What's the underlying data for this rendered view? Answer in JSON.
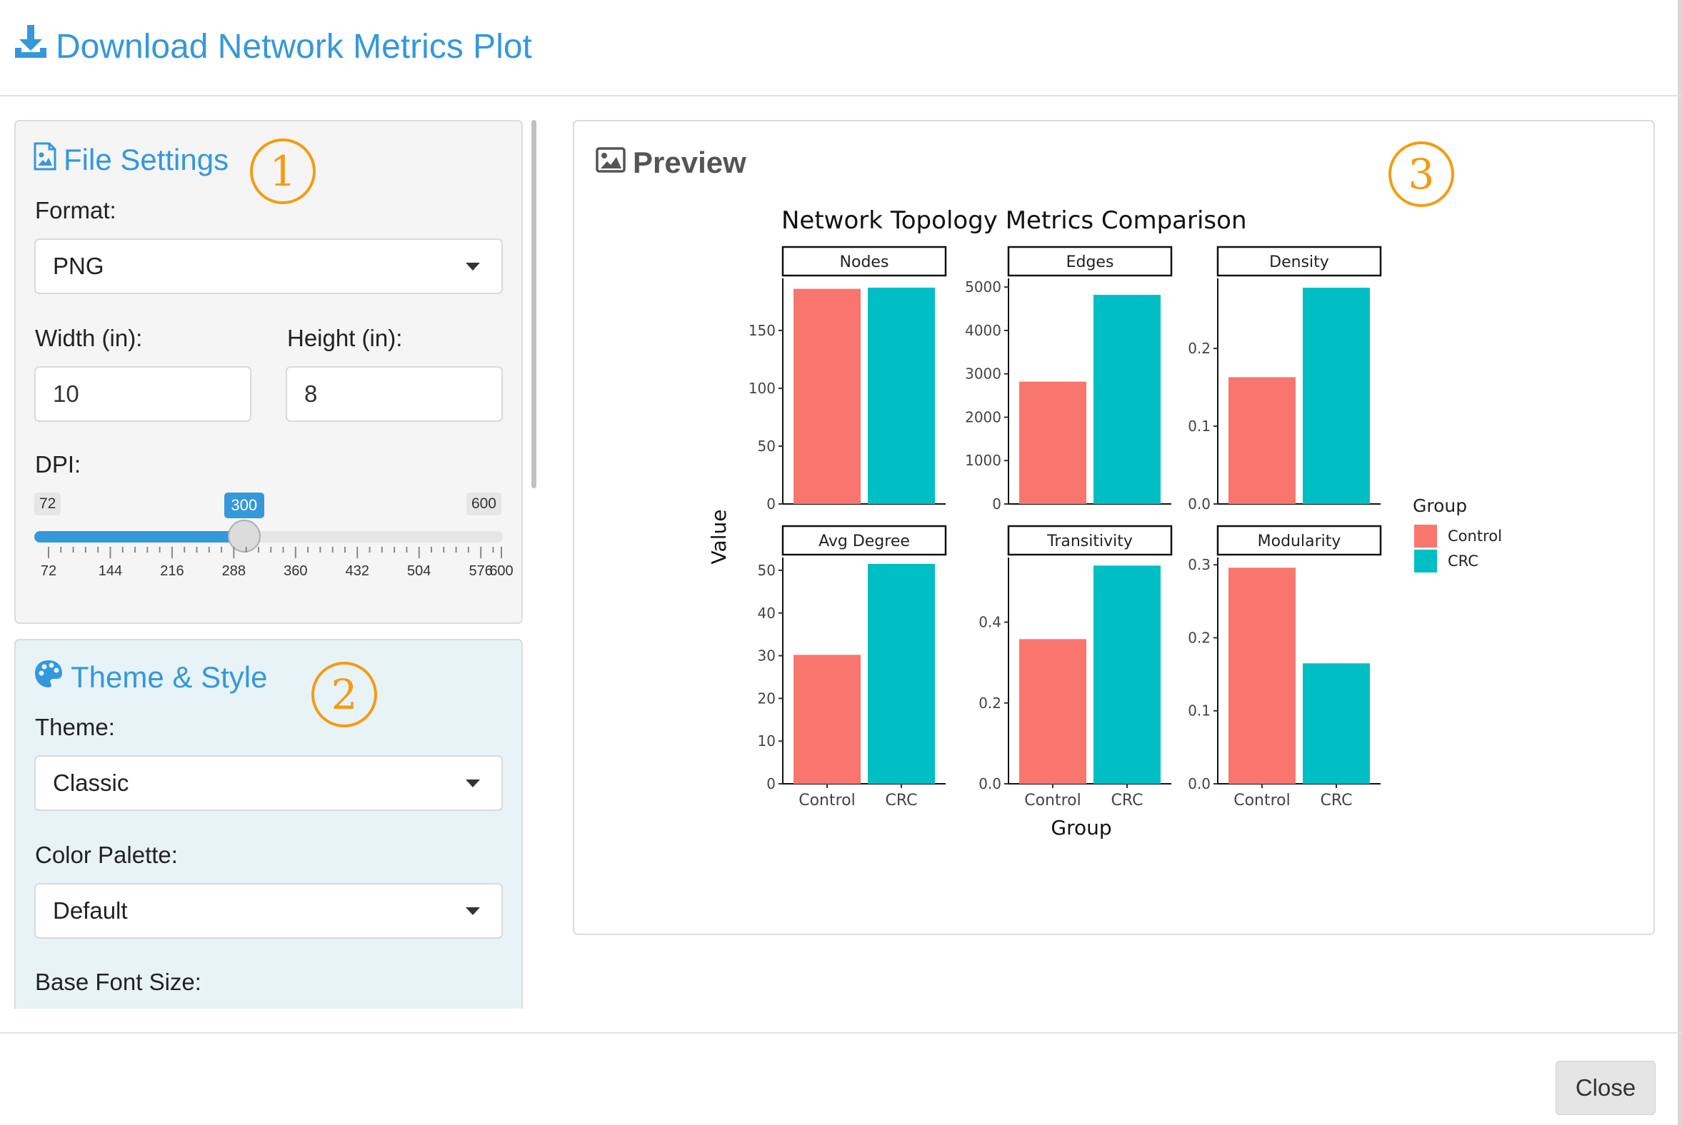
{
  "modal": {
    "title": "Download Network Metrics Plot",
    "close_label": "Close"
  },
  "file_settings": {
    "title": "File Settings",
    "badge": "1",
    "format_label": "Format:",
    "format_value": "PNG",
    "width_label": "Width (in):",
    "width_value": "10",
    "height_label": "Height (in):",
    "height_value": "8",
    "dpi_label": "DPI:",
    "dpi": {
      "min": 72,
      "max": 600,
      "value": 300,
      "min_label": "72",
      "max_label": "600",
      "value_label": "300",
      "grid_labels": [
        "72",
        "144",
        "216",
        "288",
        "360",
        "432",
        "504",
        "576",
        "600"
      ]
    }
  },
  "theme_style": {
    "title": "Theme & Style",
    "badge": "2",
    "theme_label": "Theme:",
    "theme_value": "Classic",
    "palette_label": "Color Palette:",
    "palette_value": "Default",
    "font_size_label": "Base Font Size:"
  },
  "preview": {
    "title": "Preview",
    "badge": "3"
  },
  "icons": {
    "header": "download-icon",
    "file_settings": "file-image-icon",
    "theme_style": "palette-icon",
    "preview": "image-icon"
  },
  "colors": {
    "accent": "#3498db",
    "badge": "#f39c12",
    "control": "#F8766D",
    "crc": "#00BFC4"
  },
  "chart_data": {
    "type": "bar",
    "title": "Network Topology Metrics Comparison",
    "xlabel": "Group",
    "ylabel": "Value",
    "categories": [
      "Control",
      "CRC"
    ],
    "legend": {
      "title": "Group",
      "entries": [
        "Control",
        "CRC"
      ],
      "placement": "right"
    },
    "facets": [
      {
        "name": "Nodes",
        "values": [
          186,
          187
        ],
        "ylim": [
          0,
          195
        ],
        "yticks": [
          0,
          50,
          100,
          150
        ]
      },
      {
        "name": "Edges",
        "values": [
          2820,
          4820
        ],
        "ylim": [
          0,
          5200
        ],
        "yticks": [
          0,
          1000,
          2000,
          3000,
          4000,
          5000
        ]
      },
      {
        "name": "Density",
        "values": [
          0.163,
          0.278
        ],
        "ylim": [
          0,
          0.29
        ],
        "yticks": [
          0.0,
          0.1,
          0.2
        ],
        "tick_decimals": 1
      },
      {
        "name": "Avg Degree",
        "values": [
          30.2,
          51.5
        ],
        "ylim": [
          0,
          53
        ],
        "yticks": [
          0,
          10,
          20,
          30,
          40,
          50
        ]
      },
      {
        "name": "Transitivity",
        "values": [
          0.358,
          0.54
        ],
        "ylim": [
          0,
          0.56
        ],
        "yticks": [
          0.0,
          0.2,
          0.4
        ],
        "tick_decimals": 1
      },
      {
        "name": "Modularity",
        "values": [
          0.296,
          0.165
        ],
        "ylim": [
          0,
          0.31
        ],
        "yticks": [
          0.0,
          0.1,
          0.2,
          0.3
        ],
        "tick_decimals": 1
      }
    ]
  }
}
